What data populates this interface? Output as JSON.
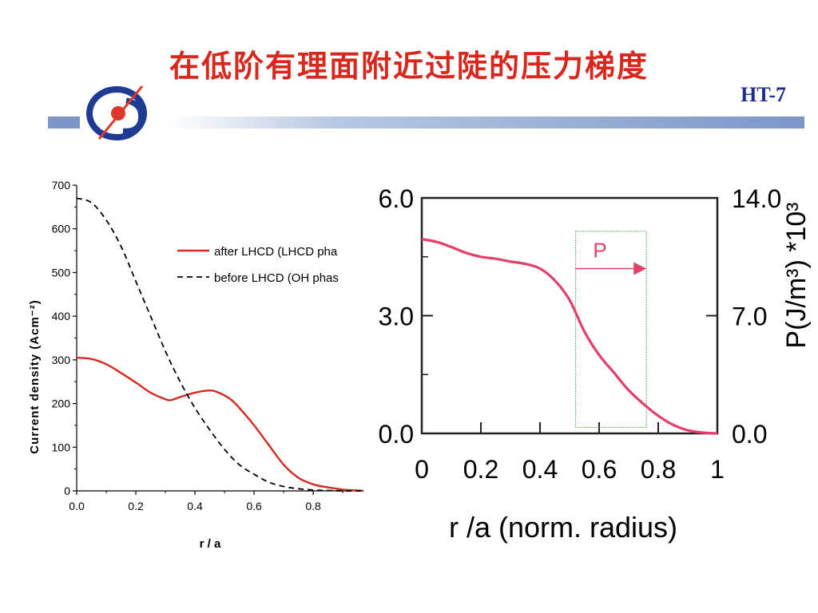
{
  "slide": {
    "title": "在低阶有理面附近过陡的压力梯度",
    "tag": "HT-7"
  },
  "chart_data": [
    {
      "type": "line",
      "xlabel": "r / a",
      "ylabel": "Current density (Acm⁻²)",
      "xlim": [
        0.0,
        0.97
      ],
      "ylim": [
        0,
        700
      ],
      "xticks": [
        "0.0",
        "0.2",
        "0.4",
        "0.6",
        "0.8"
      ],
      "xtick_values": [
        0.0,
        0.2,
        0.4,
        0.6,
        0.8
      ],
      "yticks": [
        "0",
        "100",
        "200",
        "300",
        "400",
        "500",
        "600",
        "700"
      ],
      "ytick_values": [
        0,
        100,
        200,
        300,
        400,
        500,
        600,
        700
      ],
      "legend_placement": "top-right",
      "series": [
        {
          "name": "after LHCD (LHCD pha",
          "color": "#d42a20",
          "style": "solid",
          "x": [
            0.0,
            0.05,
            0.1,
            0.15,
            0.2,
            0.25,
            0.3,
            0.32,
            0.35,
            0.4,
            0.45,
            0.48,
            0.52,
            0.55,
            0.6,
            0.65,
            0.7,
            0.75,
            0.8,
            0.85,
            0.9,
            0.95,
            0.97
          ],
          "y": [
            305,
            302,
            290,
            270,
            248,
            225,
            210,
            208,
            215,
            225,
            230,
            225,
            210,
            190,
            150,
            105,
            60,
            30,
            15,
            8,
            3,
            1,
            0
          ]
        },
        {
          "name": "before LHCD (OH phas",
          "color": "#000000",
          "style": "dashed",
          "x": [
            0.0,
            0.05,
            0.1,
            0.15,
            0.2,
            0.25,
            0.3,
            0.35,
            0.4,
            0.45,
            0.5,
            0.55,
            0.6,
            0.65,
            0.7,
            0.75,
            0.8,
            0.85,
            0.9,
            0.97
          ],
          "y": [
            670,
            660,
            620,
            560,
            480,
            400,
            320,
            250,
            190,
            140,
            95,
            60,
            38,
            20,
            10,
            5,
            2,
            1,
            0,
            0
          ]
        }
      ]
    },
    {
      "type": "line",
      "xlabel": "r /a (norm. radius)",
      "ylabel_right": "P(J/m³) *10³",
      "xlim": [
        0,
        1
      ],
      "ylim": [
        0,
        6
      ],
      "xticks": [
        "0",
        "0.2",
        "0.4",
        "0.6",
        "0.8",
        "1"
      ],
      "xtick_values": [
        0,
        0.2,
        0.4,
        0.6,
        0.8,
        1
      ],
      "yticks_left": [
        "0.0",
        "3.0",
        "6.0"
      ],
      "ytick_values_left": [
        0,
        3,
        6
      ],
      "yticks_right": [
        "0.0",
        "7.0",
        "14.0"
      ],
      "annotation": {
        "label": "P",
        "x_from": 0.52,
        "x_to": 0.76,
        "y": 4.2,
        "box_x": [
          0.52,
          0.76
        ],
        "box_y": [
          0.15,
          5.15
        ]
      },
      "series": [
        {
          "color": "#e0406a",
          "x": [
            0.0,
            0.05,
            0.1,
            0.15,
            0.2,
            0.25,
            0.3,
            0.35,
            0.4,
            0.45,
            0.5,
            0.55,
            0.6,
            0.65,
            0.7,
            0.75,
            0.8,
            0.85,
            0.9,
            0.95,
            1.0
          ],
          "y": [
            4.95,
            4.88,
            4.75,
            4.6,
            4.5,
            4.45,
            4.38,
            4.32,
            4.2,
            3.9,
            3.4,
            2.6,
            2.0,
            1.55,
            1.1,
            0.75,
            0.45,
            0.22,
            0.08,
            0.02,
            0.0
          ]
        }
      ]
    }
  ]
}
